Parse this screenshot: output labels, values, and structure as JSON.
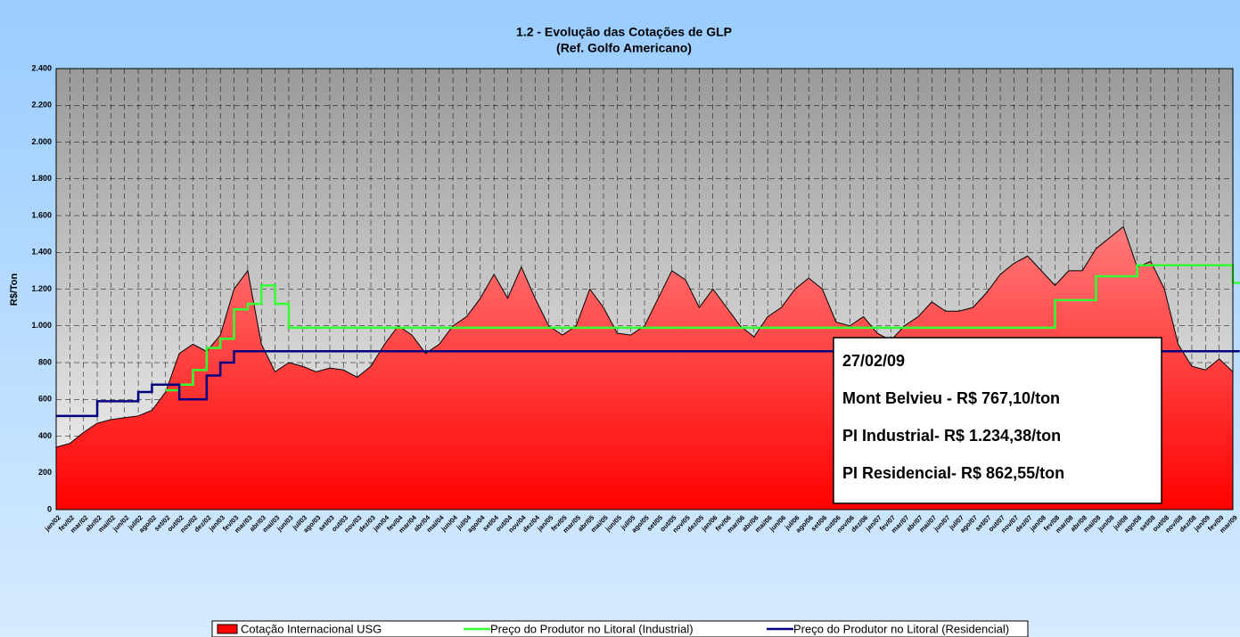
{
  "chart_data": {
    "type": "area-step",
    "title": "1.2 - Evolução das Cotações de GLP",
    "subtitle": "(Ref. Golfo Americano)",
    "y_label": "R$/Ton",
    "categories": [
      "jan/02",
      "fev/02",
      "mar/02",
      "abr/02",
      "mai/02",
      "jun/02",
      "jul/02",
      "ago/02",
      "set/02",
      "out/02",
      "nov/02",
      "dez/02",
      "jan/03",
      "fev/03",
      "mar/03",
      "abr/03",
      "mai/03",
      "jun/03",
      "jul/03",
      "ago/03",
      "set/03",
      "out/03",
      "nov/03",
      "dez/03",
      "jan/04",
      "fev/04",
      "mar/04",
      "abr/04",
      "mai/04",
      "jun/04",
      "jul/04",
      "ago/04",
      "set/04",
      "out/04",
      "nov/04",
      "dez/04",
      "jan/05",
      "fev/05",
      "mar/05",
      "abr/05",
      "mai/05",
      "jun/05",
      "jul/05",
      "ago/05",
      "set/05",
      "out/05",
      "nov/05",
      "dez/05",
      "jan/06",
      "fev/06",
      "mar/06",
      "abr/06",
      "mai/06",
      "jun/06",
      "jul/06",
      "ago/06",
      "set/06",
      "out/06",
      "nov/06",
      "dez/06",
      "jan/07",
      "fev/07",
      "mar/07",
      "abr/07",
      "mai/07",
      "jun/07",
      "jul/07",
      "ago/07",
      "set/07",
      "out/07",
      "nov/07",
      "dez/07",
      "jan/08",
      "fev/08",
      "mar/08",
      "abr/08",
      "mai/08",
      "jun/08",
      "jul/08",
      "ago/08",
      "set/08",
      "out/08",
      "nov/08",
      "dez/08",
      "jan/09",
      "fev/09",
      "mar/09"
    ],
    "series": [
      {
        "name": "Cotação Internacional USG",
        "color": "#ff0000",
        "style": "area",
        "values": [
          340,
          360,
          420,
          470,
          490,
          500,
          510,
          540,
          640,
          850,
          900,
          860,
          950,
          1200,
          1300,
          900,
          750,
          800,
          780,
          750,
          770,
          760,
          720,
          780,
          900,
          1000,
          950,
          850,
          900,
          1000,
          1050,
          1150,
          1280,
          1150,
          1320,
          1150,
          1000,
          950,
          1000,
          1200,
          1100,
          960,
          950,
          1000,
          1150,
          1300,
          1250,
          1100,
          1200,
          1100,
          1000,
          940,
          1050,
          1100,
          1200,
          1260,
          1200,
          1020,
          1000,
          1050,
          960,
          920,
          1000,
          1050,
          1130,
          1080,
          1080,
          1100,
          1180,
          1280,
          1340,
          1380,
          1300,
          1220,
          1300,
          1300,
          1420,
          1480,
          1540,
          1320,
          1350,
          1200,
          900,
          780,
          760,
          820,
          750
        ]
      },
      {
        "name": "Preço do Produtor no Litoral (Industrial)",
        "color": "#33ff33",
        "style": "step",
        "values": [
          null,
          null,
          null,
          null,
          null,
          null,
          null,
          null,
          650,
          680,
          760,
          880,
          930,
          1090,
          1120,
          1220,
          1120,
          990,
          990,
          990,
          990,
          990,
          990,
          990,
          990,
          990,
          990,
          990,
          990,
          990,
          990,
          990,
          990,
          990,
          990,
          990,
          990,
          990,
          990,
          990,
          990,
          990,
          990,
          990,
          990,
          990,
          990,
          990,
          990,
          990,
          990,
          990,
          990,
          990,
          990,
          990,
          990,
          990,
          990,
          990,
          990,
          990,
          990,
          990,
          990,
          990,
          990,
          990,
          990,
          990,
          990,
          990,
          990,
          1140,
          1140,
          1140,
          1270,
          1270,
          1270,
          1330,
          1330,
          1330,
          1330,
          1330,
          1330,
          1330,
          1234
        ]
      },
      {
        "name": "Preço do Produtor no Litoral (Residencial)",
        "color": "#000080",
        "style": "step",
        "values": [
          510,
          510,
          510,
          590,
          590,
          590,
          640,
          680,
          680,
          600,
          600,
          730,
          800,
          862,
          862,
          862,
          862,
          862,
          862,
          862,
          862,
          862,
          862,
          862,
          862,
          862,
          862,
          862,
          862,
          862,
          862,
          862,
          862,
          862,
          862,
          862,
          862,
          862,
          862,
          862,
          862,
          862,
          862,
          862,
          862,
          862,
          862,
          862,
          862,
          862,
          862,
          862,
          862,
          862,
          862,
          862,
          862,
          862,
          862,
          862,
          862,
          862,
          862,
          862,
          862,
          862,
          862,
          862,
          862,
          862,
          862,
          862,
          862,
          862,
          862,
          862,
          862,
          862,
          862,
          862,
          862,
          862,
          862,
          862,
          862,
          862,
          862
        ]
      }
    ],
    "ylim": [
      0,
      2400
    ],
    "yticks": [
      0,
      200,
      400,
      600,
      800,
      {
        "value": 1000,
        "label": "1.000"
      },
      {
        "value": 1200,
        "label": "1.200"
      },
      {
        "value": 1400,
        "label": "1.400"
      },
      {
        "value": 1600,
        "label": "1.600"
      },
      {
        "value": 1800,
        "label": "1.800"
      },
      {
        "value": 2000,
        "label": "2.000"
      },
      {
        "value": 2200,
        "label": "2.200"
      },
      {
        "value": 2400,
        "label": "2.400"
      }
    ],
    "grid": true,
    "annotations": [
      "27/02/09",
      "Mont Belvieu - R$ 767,10/ton",
      "PI Industrial- R$ 1.234,38/ton",
      "PI Residencial- R$ 862,55/ton"
    ],
    "legend": "bottom"
  }
}
